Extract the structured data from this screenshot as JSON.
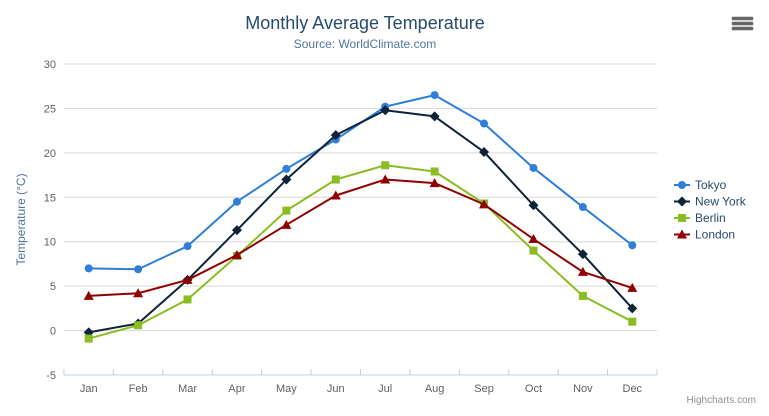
{
  "chart_data": {
    "type": "line",
    "title": "Monthly Average Temperature",
    "subtitle": "Source: WorldClimate.com",
    "categories": [
      "Jan",
      "Feb",
      "Mar",
      "Apr",
      "May",
      "Jun",
      "Jul",
      "Aug",
      "Sep",
      "Oct",
      "Nov",
      "Dec"
    ],
    "xlabel": "",
    "ylabel": "Temperature (°C)",
    "ylim": [
      -5,
      30
    ],
    "ytick_interval": 5,
    "grid": true,
    "legend_position": "right",
    "series": [
      {
        "name": "Tokyo",
        "color": "#2f7ed8",
        "marker": "circle",
        "values": [
          7.0,
          6.9,
          9.5,
          14.5,
          18.2,
          21.5,
          25.2,
          26.5,
          23.3,
          18.3,
          13.9,
          9.6
        ]
      },
      {
        "name": "New York",
        "color": "#0d233a",
        "marker": "diamond",
        "values": [
          -0.2,
          0.8,
          5.7,
          11.3,
          17.0,
          22.0,
          24.8,
          24.1,
          20.1,
          14.1,
          8.6,
          2.5
        ]
      },
      {
        "name": "Berlin",
        "color": "#8bbc21",
        "marker": "square",
        "values": [
          -0.9,
          0.6,
          3.5,
          8.4,
          13.5,
          17.0,
          18.6,
          17.9,
          14.3,
          9.0,
          3.9,
          1.0
        ]
      },
      {
        "name": "London",
        "color": "#910000",
        "marker": "triangle",
        "values": [
          3.9,
          4.2,
          5.7,
          8.5,
          11.9,
          15.2,
          17.0,
          16.6,
          14.2,
          10.3,
          6.6,
          4.8
        ]
      }
    ]
  },
  "credits": {
    "label": "Highcharts.com"
  },
  "icons": {
    "menu": "hamburger-menu-icon"
  },
  "colors": {
    "title": "#274b6d",
    "subtitle": "#4d759e",
    "axis_label": "#606060",
    "axis_title": "#4d759e",
    "legend_text": "#274b6d",
    "gridline": "#d8d8d8",
    "axis_line": "#c0d0e0",
    "credits": "#909090",
    "menu_bars": "#666666"
  }
}
